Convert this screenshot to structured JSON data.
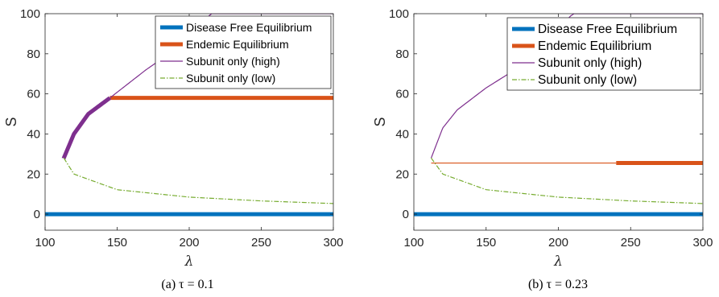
{
  "chart_data": [
    {
      "type": "line",
      "caption": "(a) τ = 0.1",
      "xlabel": "λ",
      "ylabel": "S",
      "xlim": [
        100,
        300
      ],
      "ylim": [
        -8,
        100
      ],
      "xticks": [
        100,
        150,
        200,
        250,
        300
      ],
      "yticks": [
        0,
        20,
        40,
        60,
        80,
        100
      ],
      "legend": {
        "placement": "top-right"
      },
      "series": [
        {
          "name": "Disease Free Equilibrium",
          "color": "#0072BD",
          "style": "thick-solid",
          "segments": [
            {
              "kind": "constant",
              "x": [
                100,
                300
              ],
              "y": 0,
              "stable": true
            }
          ]
        },
        {
          "name": "Endemic Equilibrium",
          "color": "#D95319",
          "style": "thick-solid",
          "segments": [
            {
              "kind": "constant",
              "x": [
                145,
                300
              ],
              "y": 58,
              "stable": true
            }
          ]
        },
        {
          "name": "Subunit only (high)",
          "color": "#7E2F8E",
          "style": "thin-solid",
          "segments": [
            {
              "kind": "upper-branch",
              "x": [
                113,
                145
              ],
              "stable": true
            },
            {
              "kind": "upper-branch",
              "x": [
                145,
                300
              ],
              "stable": false
            }
          ]
        },
        {
          "name": "Subunit only (low)",
          "color": "#77AC30",
          "style": "dash-dot",
          "segments": [
            {
              "kind": "lower-branch",
              "x": [
                113,
                300
              ],
              "stable": false
            }
          ]
        }
      ],
      "curve_points": {
        "fold": [
          113,
          28
        ],
        "high_samples": [
          [
            113,
            28
          ],
          [
            120,
            40
          ],
          [
            130,
            50
          ],
          [
            145,
            58
          ],
          [
            170,
            72
          ],
          [
            200,
            87
          ],
          [
            215,
            100
          ]
        ],
        "low_samples": [
          [
            113,
            28
          ],
          [
            120,
            20
          ],
          [
            150,
            12.2
          ],
          [
            200,
            8.5
          ],
          [
            250,
            6.6
          ],
          [
            300,
            5.3
          ]
        ]
      }
    },
    {
      "type": "line",
      "caption": "(b) τ = 0.23",
      "xlabel": "λ",
      "ylabel": "S",
      "xlim": [
        100,
        300
      ],
      "ylim": [
        -8,
        100
      ],
      "xticks": [
        100,
        150,
        200,
        250,
        300
      ],
      "yticks": [
        0,
        20,
        40,
        60,
        80,
        100
      ],
      "legend": {
        "placement": "top-right"
      },
      "series": [
        {
          "name": "Disease Free Equilibrium",
          "color": "#0072BD",
          "style": "thick-solid",
          "segments": [
            {
              "kind": "constant",
              "x": [
                100,
                300
              ],
              "y": 0,
              "stable": true
            }
          ]
        },
        {
          "name": "Endemic Equilibrium",
          "color": "#D95319",
          "style": "thick-solid",
          "segments": [
            {
              "kind": "constant",
              "x": [
                112,
                240
              ],
              "y": 25.5,
              "stable": false
            },
            {
              "kind": "constant",
              "x": [
                240,
                300
              ],
              "y": 25.5,
              "stable": true
            }
          ]
        },
        {
          "name": "Subunit only (high)",
          "color": "#7E2F8E",
          "style": "thin-solid",
          "segments": [
            {
              "kind": "upper-branch",
              "x": [
                112,
                300
              ],
              "stable": false
            }
          ]
        },
        {
          "name": "Subunit only (low)",
          "color": "#77AC30",
          "style": "dash-dot",
          "segments": [
            {
              "kind": "lower-branch",
              "x": [
                112,
                300
              ],
              "stable": false
            }
          ]
        }
      ],
      "curve_points": {
        "fold": [
          112,
          28
        ],
        "high_samples": [
          [
            112,
            28
          ],
          [
            120,
            43
          ],
          [
            130,
            52
          ],
          [
            150,
            63
          ],
          [
            170,
            72
          ],
          [
            190,
            85
          ],
          [
            210,
            100
          ]
        ],
        "low_samples": [
          [
            112,
            28
          ],
          [
            120,
            20
          ],
          [
            150,
            12.2
          ],
          [
            200,
            8.5
          ],
          [
            250,
            6.6
          ],
          [
            300,
            5.3
          ]
        ]
      }
    }
  ]
}
